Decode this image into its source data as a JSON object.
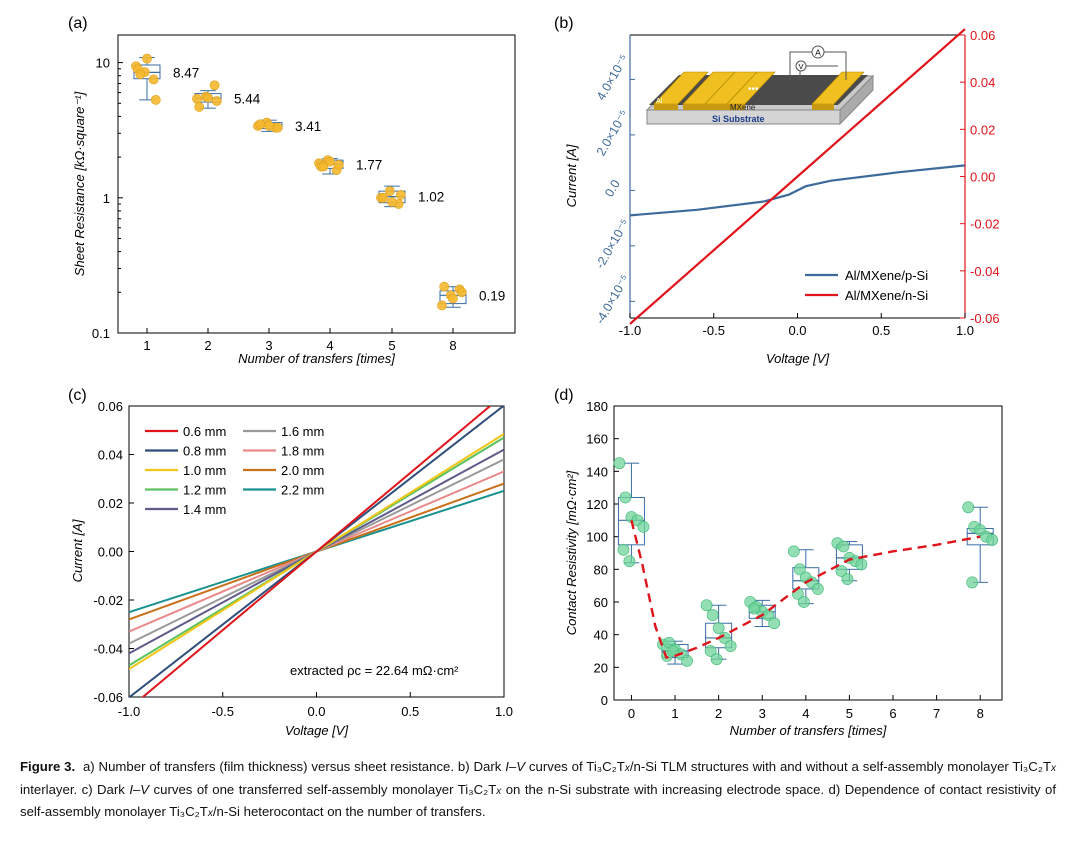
{
  "colors": {
    "box": "#3a6ea5",
    "point_a": "#f5b82e",
    "point_d": "#6fd49a",
    "p_si": "#3d6a9a",
    "n_si": "#e0141b",
    "fit": "#e0141b",
    "axis_right": "#e0141b",
    "axis_left_b": "#3d6a9a"
  },
  "chart_data": [
    {
      "panel": "(a)",
      "type": "box",
      "xlabel": "Number of transfers [times]",
      "ylabel": "Sheet Resistance [kΩ·square⁻¹]",
      "yscale": "log",
      "ylim": [
        0.1,
        16
      ],
      "yticks": [
        {
          "v": 0.1,
          "label": "0.1"
        },
        {
          "v": 1,
          "label": "1"
        },
        {
          "v": 10,
          "label": "10"
        }
      ],
      "categories": [
        "1",
        "2",
        "3",
        "4",
        "5",
        "8"
      ],
      "boxes": [
        {
          "q1": 7.6,
          "median": 8.47,
          "q3": 9.6,
          "wlo": 5.3,
          "whi": 10.9,
          "pts": [
            9.4,
            8.5,
            7.5,
            8.9,
            10.7,
            5.3,
            8.2
          ]
        },
        {
          "q1": 5.1,
          "median": 5.44,
          "q3": 5.9,
          "wlo": 4.6,
          "whi": 6.2,
          "pts": [
            5.4,
            5.6,
            6.8,
            4.7,
            5.5,
            5.2
          ]
        },
        {
          "q1": 3.25,
          "median": 3.41,
          "q3": 3.6,
          "wlo": 3.1,
          "whi": 3.75,
          "pts": [
            3.4,
            3.6,
            3.3,
            3.5,
            3.4,
            3.3
          ]
        },
        {
          "q1": 1.65,
          "median": 1.77,
          "q3": 1.9,
          "wlo": 1.5,
          "whi": 1.95,
          "pts": [
            1.8,
            1.9,
            1.6,
            1.7,
            1.85,
            1.75,
            1.7
          ]
        },
        {
          "q1": 0.92,
          "median": 1.02,
          "q3": 1.12,
          "wlo": 0.86,
          "whi": 1.22,
          "pts": [
            1.0,
            1.12,
            0.9,
            1.0,
            0.93,
            1.05
          ]
        },
        {
          "q1": 0.165,
          "median": 0.19,
          "q3": 0.205,
          "wlo": 0.155,
          "whi": 0.22,
          "pts": [
            0.16,
            0.19,
            0.21,
            0.22,
            0.18,
            0.2
          ]
        }
      ],
      "annotations": [
        "8.47",
        "5.44",
        "3.41",
        "1.77",
        "1.02",
        "0.19"
      ]
    },
    {
      "panel": "(b)",
      "type": "line",
      "xlabel": "Voltage [V]",
      "ylabel": "Current [A]",
      "xlim": [
        -1.0,
        1.0
      ],
      "xticks": [
        "-1.0",
        "-0.5",
        "0.0",
        "0.5",
        "1.0"
      ],
      "y_left_lim": [
        -4.6e-05,
        5.6e-05
      ],
      "y_left_ticks": [
        {
          "v": -4e-05,
          "label": "-4.0×10⁻⁵"
        },
        {
          "v": -2e-05,
          "label": "-2.0×10⁻⁵"
        },
        {
          "v": 0,
          "label": "0.0"
        },
        {
          "v": 2e-05,
          "label": "2.0×10⁻⁵"
        },
        {
          "v": 4e-05,
          "label": "4.0×10⁻⁵"
        }
      ],
      "y_right_lim": [
        -0.06,
        0.06
      ],
      "y_right_ticks": [
        "-0.06",
        "-0.04",
        "-0.02",
        "0.00",
        "0.02",
        "0.04",
        "0.06"
      ],
      "series": [
        {
          "name": "Al/MXene/p-Si",
          "axis": "left",
          "x": [
            -1.0,
            -0.6,
            -0.2,
            -0.05,
            0.0,
            0.05,
            0.2,
            0.6,
            1.0
          ],
          "y": [
            -9e-06,
            -7e-06,
            -4e-06,
            -1.5e-06,
            0,
            1.5e-06,
            3.5e-06,
            6.5e-06,
            9e-06
          ]
        },
        {
          "name": "Al/MXene/n-Si",
          "axis": "right",
          "x": [
            -1.0,
            0.0,
            1.0
          ],
          "y": [
            -0.0625,
            0.0,
            0.0625
          ]
        }
      ],
      "legend": "bottom-right",
      "inset": {
        "labels": [
          "A",
          "V",
          "Al",
          "MXene",
          "Si Substrate",
          "•••"
        ]
      }
    },
    {
      "panel": "(c)",
      "type": "line",
      "xlabel": "Voltage [V]",
      "ylabel": "Current [A]",
      "xlim": [
        -1.0,
        1.0
      ],
      "ylim": [
        -0.06,
        0.06
      ],
      "xticks": [
        "-1.0",
        "-0.5",
        "0.0",
        "0.5",
        "1.0"
      ],
      "yticks": [
        "-0.06",
        "-0.04",
        "-0.02",
        "0.00",
        "0.02",
        "0.04",
        "0.06"
      ],
      "series": [
        {
          "name": "0.6 mm",
          "color": "#e0141b",
          "slope": 0.0648
        },
        {
          "name": "0.8 mm",
          "color": "#2e4d7a",
          "slope": 0.0602
        },
        {
          "name": "1.0 mm",
          "color": "#f2c618",
          "slope": 0.0485
        },
        {
          "name": "1.2 mm",
          "color": "#5ec25e",
          "slope": 0.047
        },
        {
          "name": "1.4 mm",
          "color": "#5e5a8a",
          "slope": 0.042
        },
        {
          "name": "1.6 mm",
          "color": "#9a9a9a",
          "slope": 0.038
        },
        {
          "name": "1.8 mm",
          "color": "#e98a8a",
          "slope": 0.033
        },
        {
          "name": "2.0 mm",
          "color": "#c9701a",
          "slope": 0.028
        },
        {
          "name": "2.2 mm",
          "color": "#19928f",
          "slope": 0.025
        }
      ],
      "annotation": "extracted ρc = 22.64 mΩ·cm²"
    },
    {
      "panel": "(d)",
      "type": "box",
      "xlabel": "Number of transfers [times]",
      "ylabel": "Contact Resistivity [mΩ·cm²]",
      "xlim": [
        -0.4,
        8.5
      ],
      "ylim": [
        0,
        180
      ],
      "xticks": [
        "0",
        "1",
        "2",
        "3",
        "4",
        "5",
        "6",
        "7",
        "8"
      ],
      "yticks": [
        "0",
        "20",
        "40",
        "60",
        "80",
        "100",
        "120",
        "140",
        "160",
        "180"
      ],
      "boxes": [
        {
          "x": 0,
          "q1": 95,
          "median": 110,
          "q3": 124,
          "wlo": 84,
          "whi": 145,
          "pts": [
            145,
            124,
            112,
            110,
            106,
            92,
            85
          ]
        },
        {
          "x": 1,
          "q1": 26,
          "median": 30,
          "q3": 34,
          "wlo": 22,
          "whi": 36,
          "pts": [
            34,
            35,
            31,
            28,
            24,
            27,
            30
          ]
        },
        {
          "x": 2,
          "q1": 32,
          "median": 38,
          "q3": 47,
          "wlo": 25,
          "whi": 58,
          "pts": [
            58,
            52,
            44,
            38,
            33,
            30,
            25
          ]
        },
        {
          "x": 3,
          "q1": 50,
          "median": 54,
          "q3": 58,
          "wlo": 45,
          "whi": 61,
          "pts": [
            60,
            57,
            54,
            52,
            47,
            56
          ]
        },
        {
          "x": 4,
          "q1": 68,
          "median": 73,
          "q3": 81,
          "wlo": 59,
          "whi": 92,
          "pts": [
            91,
            80,
            75,
            72,
            68,
            65,
            60
          ]
        },
        {
          "x": 5,
          "q1": 80,
          "median": 87,
          "q3": 95,
          "wlo": 73,
          "whi": 97,
          "pts": [
            96,
            94,
            87,
            85,
            83,
            79,
            74
          ]
        },
        {
          "x": 8,
          "q1": 95,
          "median": 102,
          "q3": 105,
          "wlo": 72,
          "whi": 118,
          "pts": [
            118,
            106,
            104,
            100,
            98,
            72
          ]
        }
      ],
      "fit": {
        "x": [
          0,
          0.25,
          0.55,
          0.8,
          1.0,
          1.5,
          2,
          3,
          4,
          5,
          6,
          7,
          8
        ],
        "y": [
          110,
          83,
          45,
          26,
          27,
          32,
          38,
          52,
          72,
          86,
          91,
          95,
          100
        ]
      }
    }
  ],
  "caption": {
    "label": "Figure 3.",
    "text_a": "a) Number of transfers (film thickness) versus sheet resistance. b) Dark ",
    "iv1": "I–V",
    "text_b": " curves of Ti₃C₂T",
    "x1": "x",
    "text_c": "/n-Si TLM structures with and without a self-assembly monolayer Ti₃C₂T",
    "x2": "x",
    "text_d": " interlayer. c) Dark ",
    "iv2": "I–V",
    "text_e": " curves of one transferred self-assembly monolayer Ti₃C₂T",
    "x3": "x",
    "text_f": " on the n-Si substrate with increasing electrode space. d) Dependence of contact resistivity of self-assembly monolayer Ti₃C₂T",
    "x4": "x",
    "text_g": "/n-Si heterocontact on the number of transfers."
  }
}
